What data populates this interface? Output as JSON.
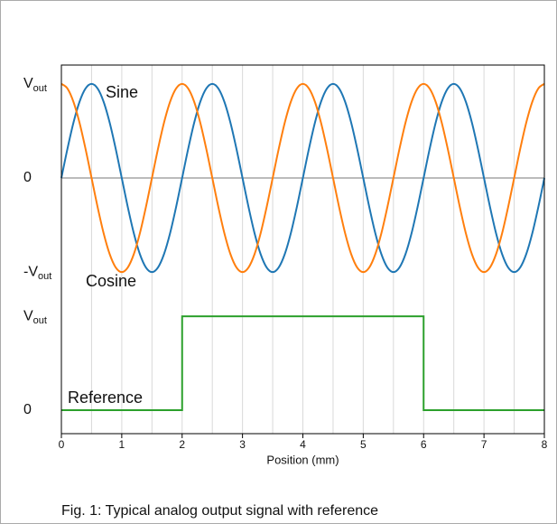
{
  "caption": "Fig. 1: Typical analog output signal with reference",
  "chart_data": [
    {
      "type": "line",
      "x": [
        0,
        0.1,
        0.2,
        0.3,
        0.4,
        0.5,
        0.6,
        0.7,
        0.8,
        0.9,
        1,
        1.1,
        1.2,
        1.3,
        1.4,
        1.5,
        1.6,
        1.7,
        1.8,
        1.9,
        2,
        2.1,
        2.2,
        2.3,
        2.4,
        2.5,
        2.6,
        2.7,
        2.8,
        2.9,
        3,
        3.1,
        3.2,
        3.3,
        3.4,
        3.5,
        3.6,
        3.7,
        3.8,
        3.9,
        4,
        4.1,
        4.2,
        4.3,
        4.4,
        4.5,
        4.6,
        4.7,
        4.8,
        4.9,
        5,
        5.1,
        5.2,
        5.3,
        5.4,
        5.5,
        5.6,
        5.7,
        5.8,
        5.9,
        6,
        6.1,
        6.2,
        6.3,
        6.4,
        6.5,
        6.6,
        6.7,
        6.8,
        6.9,
        7,
        7.1,
        7.2,
        7.3,
        7.4,
        7.5,
        7.6,
        7.7,
        7.8,
        7.9,
        8
      ],
      "series": [
        {
          "name": "Sine",
          "color": "#1f77b4",
          "values": [
            0,
            0.309,
            0.588,
            0.809,
            0.951,
            1,
            0.951,
            0.809,
            0.588,
            0.309,
            0,
            -0.309,
            -0.588,
            -0.809,
            -0.951,
            -1,
            -0.951,
            -0.809,
            -0.588,
            -0.309,
            0,
            0.309,
            0.588,
            0.809,
            0.951,
            1,
            0.951,
            0.809,
            0.588,
            0.309,
            0,
            -0.309,
            -0.588,
            -0.809,
            -0.951,
            -1,
            -0.951,
            -0.809,
            -0.588,
            -0.309,
            0,
            0.309,
            0.588,
            0.809,
            0.951,
            1,
            0.951,
            0.809,
            0.588,
            0.309,
            0,
            -0.309,
            -0.588,
            -0.809,
            -0.951,
            -1,
            -0.951,
            -0.809,
            -0.588,
            -0.309,
            0,
            0.309,
            0.588,
            0.809,
            0.951,
            1,
            0.951,
            0.809,
            0.588,
            0.309,
            0,
            -0.309,
            -0.588,
            -0.809,
            -0.951,
            -1,
            -0.951,
            -0.809,
            -0.588,
            -0.309,
            0
          ]
        },
        {
          "name": "Cosine",
          "color": "#ff7f0e",
          "values": [
            1,
            0.951,
            0.809,
            0.588,
            0.309,
            0,
            -0.309,
            -0.588,
            -0.809,
            -0.951,
            -1,
            -0.951,
            -0.809,
            -0.588,
            -0.309,
            0,
            0.309,
            0.588,
            0.809,
            0.951,
            1,
            0.951,
            0.809,
            0.588,
            0.309,
            0,
            -0.309,
            -0.588,
            -0.809,
            -0.951,
            -1,
            -0.951,
            -0.809,
            -0.588,
            -0.309,
            0,
            0.309,
            0.588,
            0.809,
            0.951,
            1,
            0.951,
            0.809,
            0.588,
            0.309,
            0,
            -0.309,
            -0.588,
            -0.809,
            -0.951,
            -1,
            -0.951,
            -0.809,
            -0.588,
            -0.309,
            0,
            0.309,
            0.588,
            0.809,
            0.951,
            1,
            0.951,
            0.809,
            0.588,
            0.309,
            0,
            -0.309,
            -0.588,
            -0.809,
            -0.951,
            -1,
            -0.951,
            -0.809,
            -0.588,
            -0.309,
            0,
            0.309,
            0.588,
            0.809,
            0.951,
            1
          ]
        }
      ],
      "xlim": [
        0,
        8
      ],
      "ylim": [
        -1.2,
        1.2
      ],
      "yticks": [
        {
          "value": -1,
          "label": "-Vout"
        },
        0,
        {
          "value": 1,
          "label": "Vout"
        }
      ],
      "hline": 0
    },
    {
      "type": "line",
      "x": [
        0,
        2,
        2,
        6,
        6,
        8
      ],
      "series": [
        {
          "name": "Reference",
          "color": "#2ca02c",
          "values": [
            0,
            0,
            1,
            1,
            0,
            0
          ]
        }
      ],
      "xlim": [
        0,
        8
      ],
      "ylim": [
        -0.25,
        1.27
      ],
      "yticks": [
        0,
        {
          "value": 1,
          "label": "Vout"
        }
      ],
      "xticks": [
        0,
        1,
        2,
        3,
        4,
        5,
        6,
        7,
        8
      ],
      "xgrid": [
        0.5,
        1,
        1.5,
        2,
        2.5,
        3,
        3.5,
        4,
        4.5,
        5,
        5.5,
        6,
        6.5,
        7,
        7.5
      ],
      "xlabel": "Position (mm)"
    }
  ]
}
